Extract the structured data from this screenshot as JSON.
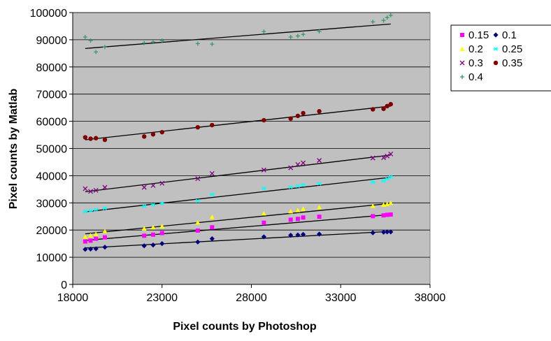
{
  "chart_data": {
    "type": "scatter",
    "title": "",
    "xlabel": "Pixel counts by Photoshop",
    "ylabel": "Pixel counts by Matlab",
    "xlim": [
      18000,
      38000
    ],
    "ylim": [
      0,
      100000
    ],
    "x_ticks": [
      18000,
      23000,
      28000,
      33000,
      38000
    ],
    "y_ticks": [
      0,
      10000,
      20000,
      30000,
      40000,
      50000,
      60000,
      70000,
      80000,
      90000,
      100000
    ],
    "x_tick_labels": [
      "18000",
      "23000",
      "28000",
      "33000",
      "38000"
    ],
    "y_tick_labels": [
      "0",
      "10000",
      "20000",
      "30000",
      "40000",
      "50000",
      "60000",
      "70000",
      "80000",
      "90000",
      "100000"
    ],
    "grid": "horizontal",
    "plot_background": "#c0c0c0",
    "legend_position": "top-right",
    "trendlines": "linear",
    "x": [
      18700,
      19000,
      19300,
      19800,
      22000,
      22500,
      23000,
      25000,
      25800,
      28700,
      30200,
      30600,
      30900,
      31800,
      34800,
      35400,
      35600,
      35800
    ],
    "series": [
      {
        "name": "0.15",
        "color": "#ff00ff",
        "marker": "square",
        "values": [
          15800,
          16100,
          16800,
          17300,
          17900,
          18300,
          18900,
          19800,
          21000,
          22700,
          23800,
          24100,
          24600,
          24900,
          25100,
          25400,
          25600,
          25700
        ],
        "trend": [
          [
            18700,
            16200
          ],
          [
            35800,
            25700
          ]
        ]
      },
      {
        "name": "0.1",
        "color": "#000080",
        "marker": "diamond",
        "values": [
          12900,
          13000,
          13100,
          13700,
          14200,
          14500,
          15000,
          15600,
          16800,
          17500,
          18100,
          18200,
          18400,
          18500,
          19000,
          19200,
          19300,
          19300
        ],
        "trend": [
          [
            18700,
            13400
          ],
          [
            35800,
            19500
          ]
        ]
      },
      {
        "name": "0.2",
        "color": "#ffff00",
        "marker": "triangle",
        "values": [
          17500,
          18000,
          18500,
          19600,
          20600,
          21000,
          21400,
          22800,
          24800,
          26100,
          26900,
          27300,
          27800,
          28400,
          28900,
          29300,
          29600,
          30000
        ],
        "trend": [
          [
            18700,
            18600
          ],
          [
            35800,
            29800
          ]
        ]
      },
      {
        "name": "0.25",
        "color": "#00ffff",
        "marker": "star",
        "values": [
          26800,
          27100,
          27500,
          28000,
          28800,
          29300,
          29800,
          30700,
          33100,
          35300,
          35800,
          36200,
          36600,
          37100,
          37600,
          38100,
          38800,
          39600
        ],
        "trend": [
          [
            18700,
            26700
          ],
          [
            35800,
            39400
          ]
        ]
      },
      {
        "name": "0.3",
        "color": "#800080",
        "marker": "x",
        "values": [
          35200,
          34200,
          34600,
          35700,
          35700,
          36400,
          37200,
          38900,
          40800,
          42100,
          42900,
          44100,
          44700,
          45600,
          46500,
          46600,
          47200,
          48000
        ],
        "trend": [
          [
            18700,
            34100
          ],
          [
            35800,
            47600
          ]
        ]
      },
      {
        "name": "0.35",
        "color": "#800000",
        "marker": "circle",
        "values": [
          54100,
          53600,
          53800,
          53200,
          54400,
          55200,
          56000,
          57800,
          58600,
          60400,
          61000,
          62000,
          63000,
          63700,
          64400,
          64600,
          65600,
          66300
        ],
        "trend": [
          [
            18700,
            53200
          ],
          [
            35800,
            65600
          ]
        ]
      },
      {
        "name": "0.4",
        "color": "#339966",
        "marker": "plus",
        "values": [
          91000,
          89700,
          85500,
          87300,
          88800,
          89200,
          89700,
          88600,
          88400,
          93000,
          91000,
          91400,
          92000,
          93100,
          96600,
          97100,
          98200,
          99000
        ],
        "trend": [
          [
            18700,
            86800
          ],
          [
            35800,
            95800
          ]
        ]
      }
    ]
  }
}
